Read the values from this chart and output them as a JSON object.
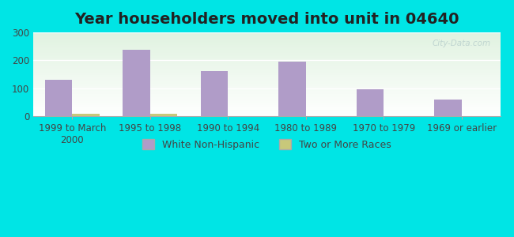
{
  "title": "Year householders moved into unit in 04640",
  "categories": [
    "1999 to March\n2000",
    "1995 to 1998",
    "1990 to 1994",
    "1980 to 1989",
    "1970 to 1979",
    "1969 or earlier"
  ],
  "white_non_hispanic": [
    130,
    238,
    163,
    195,
    97,
    60
  ],
  "two_or_more_races": [
    8,
    8,
    0,
    0,
    0,
    0
  ],
  "bar_color_white": "#b09cc8",
  "bar_color_two": "#c8c87a",
  "background_outer": "#00e5e5",
  "background_plot": "#e8f5e8",
  "ylim": [
    0,
    300
  ],
  "yticks": [
    0,
    100,
    200,
    300
  ],
  "bar_width": 0.35,
  "title_fontsize": 14,
  "tick_fontsize": 8.5,
  "legend_fontsize": 9,
  "watermark": "City-Data.com"
}
